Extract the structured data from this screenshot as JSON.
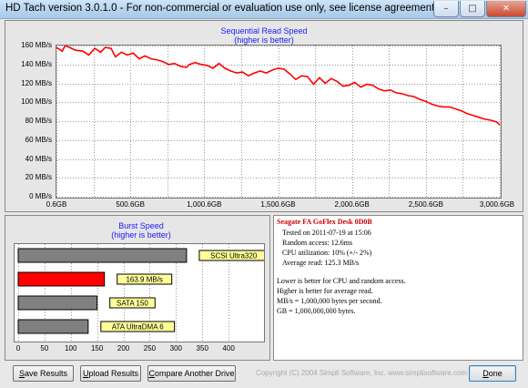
{
  "window": {
    "title": "HD Tach version 3.0.1.0  - For non-commercial or evaluation use only, see license agreement.",
    "minimize_icon": "minimize-icon",
    "maximize_icon": "maximize-icon",
    "close_icon": "close-icon"
  },
  "seq_chart": {
    "chart_data": {
      "type": "line",
      "title": "Sequential Read Speed",
      "subtitle": "(higher is better)",
      "y_tick_labels": [
        "160 MB/s",
        "140 MB/s",
        "120 MB/s",
        "100 MB/s",
        "80 MB/s",
        "60 MB/s",
        "40 MB/s",
        "20 MB/s",
        "0 MB/s"
      ],
      "x_tick_labels": [
        "0.6GB",
        "500.6GB",
        "1,000.6GB",
        "1,500.6GB",
        "2,000.6GB",
        "2,500.6GB",
        "3,000.6GB"
      ],
      "xlim": [
        0.6,
        3000.6
      ],
      "ylim": [
        0,
        160
      ],
      "grid": true,
      "series_color": "#ff0000",
      "x": [
        0.6,
        40,
        60,
        90,
        130,
        180,
        220,
        260,
        300,
        330,
        370,
        400,
        440,
        480,
        520,
        560,
        600,
        640,
        680,
        720,
        760,
        800,
        840,
        880,
        900,
        940,
        980,
        1020,
        1060,
        1100,
        1140,
        1180,
        1220,
        1260,
        1300,
        1340,
        1380,
        1420,
        1460,
        1500,
        1540,
        1580,
        1620,
        1660,
        1700,
        1740,
        1780,
        1820,
        1860,
        1900,
        1940,
        1980,
        2020,
        2060,
        2100,
        2140,
        2180,
        2220,
        2260,
        2300,
        2340,
        2380,
        2420,
        2460,
        2500,
        2540,
        2580,
        2620,
        2660,
        2700,
        2740,
        2780,
        2820,
        2860,
        2900,
        2940,
        2980,
        3000.6
      ],
      "y": [
        158,
        154,
        160,
        158,
        155,
        154,
        150,
        157,
        153,
        158,
        157,
        148,
        153,
        150,
        152,
        146,
        149,
        146,
        145,
        143,
        140,
        141,
        138,
        137,
        140,
        142,
        140,
        139,
        136,
        141,
        136,
        133,
        131,
        132,
        128,
        131,
        133,
        131,
        134,
        136,
        135,
        130,
        124,
        128,
        127,
        119,
        126,
        120,
        125,
        122,
        117,
        118,
        121,
        116,
        119,
        118,
        114,
        112,
        113,
        110,
        109,
        107,
        106,
        103,
        101,
        98,
        96,
        95,
        95,
        93,
        91,
        88,
        86,
        84,
        82,
        81,
        79,
        76
      ]
    }
  },
  "burst_chart": {
    "chart_data": {
      "type": "bar",
      "title": "Burst Speed",
      "subtitle": "(higher is better)",
      "categories": [
        "SCSI Ultra320",
        "163.9 MB/s",
        "SATA 150",
        "ATA UltraDMA 6"
      ],
      "values": [
        320,
        163.9,
        150,
        133
      ],
      "colors": [
        "#808080",
        "#ff0000",
        "#808080",
        "#808080"
      ],
      "label_bg": "#ffff99",
      "x_tick_labels": [
        "0",
        "50",
        "100",
        "150",
        "200",
        "250",
        "300",
        "350",
        "400"
      ],
      "xlim": [
        0,
        450
      ],
      "grid": true
    }
  },
  "info": {
    "drive_name": "Seagate FA GoFlex Desk 0D0B",
    "tested_on": "Tested on 2011-07-19 at 15:06",
    "random_access": "Random access: 12.6ms",
    "cpu_utilization": "CPU utilization: 10% (+/- 2%)",
    "average_read": "Average read: 125.3 MB/s",
    "note1": "Lower is better for CPU and random access.",
    "note2": "Higher is better for average read.",
    "note3": "MB/s = 1,000,000 bytes per second.",
    "note4": "GB = 1,000,000,000 bytes."
  },
  "buttons": {
    "save_first": "S",
    "save_rest": "ave Results",
    "upload_first": "U",
    "upload_rest": "pload Results",
    "compare_first": "C",
    "compare_rest": "ompare Another Drive",
    "done_first": "D",
    "done_rest": "one"
  },
  "copyright": "Copyright (C) 2004 Simpli Software, Inc. www.simplisoftware.com"
}
